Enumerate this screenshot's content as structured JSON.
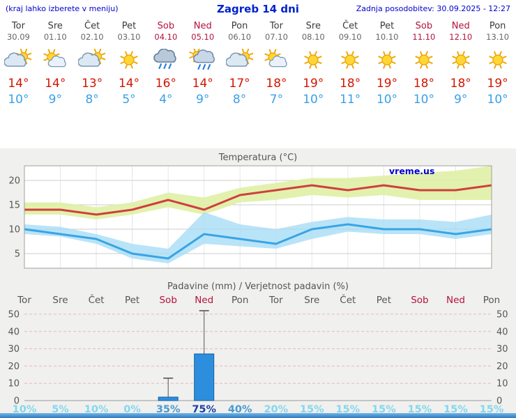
{
  "header": {
    "menu_note": "(kraj lahko izberete v meniju)",
    "title": "Zagreb 14 dni",
    "last_update": "Zadnja posodobitev: 30.09.2025 - 12:27"
  },
  "watermark": "vreme.us",
  "colors": {
    "header_blue": "#0000cc",
    "weekend_red": "#b5123c",
    "high_temp_red": "#d41400",
    "low_temp_blue": "#3a9fe8",
    "temp_max_line": "#cf3f3f",
    "temp_max_band": "#dff0a4",
    "temp_min_line": "#39a4e4",
    "temp_min_band": "#a5dcf6",
    "bar_fill": "#2d8edd",
    "bar_stroke": "#155f9f",
    "whisker": "#555555",
    "grid_temp": "#cccccc",
    "grid_precip": "#eab8b8",
    "prob_low": "#86d6ec",
    "prob_mid": "#4a9ad0",
    "prob_high": "#1b3fa8",
    "axis_text": "#555555"
  },
  "days": [
    {
      "name": "Tor",
      "date": "30.09",
      "weekend": false,
      "icon": "cloud-sun",
      "high": "14°",
      "low": "10°"
    },
    {
      "name": "Sre",
      "date": "01.10",
      "weekend": false,
      "icon": "sun-cloud",
      "high": "14°",
      "low": "9°"
    },
    {
      "name": "Čet",
      "date": "02.10",
      "weekend": false,
      "icon": "cloud-sun",
      "high": "13°",
      "low": "8°"
    },
    {
      "name": "Pet",
      "date": "03.10",
      "weekend": false,
      "icon": "sun",
      "high": "14°",
      "low": "5°"
    },
    {
      "name": "Sob",
      "date": "04.10",
      "weekend": true,
      "icon": "rain",
      "high": "16°",
      "low": "4°"
    },
    {
      "name": "Ned",
      "date": "05.10",
      "weekend": true,
      "icon": "rain-sun",
      "high": "14°",
      "low": "9°"
    },
    {
      "name": "Pon",
      "date": "06.10",
      "weekend": false,
      "icon": "cloud-sun",
      "high": "17°",
      "low": "8°"
    },
    {
      "name": "Tor",
      "date": "07.10",
      "weekend": false,
      "icon": "sun-cloud",
      "high": "18°",
      "low": "7°"
    },
    {
      "name": "Sre",
      "date": "08.10",
      "weekend": false,
      "icon": "sun",
      "high": "19°",
      "low": "10°"
    },
    {
      "name": "Čet",
      "date": "09.10",
      "weekend": false,
      "icon": "sun",
      "high": "18°",
      "low": "11°"
    },
    {
      "name": "Pet",
      "date": "10.10",
      "weekend": false,
      "icon": "sun",
      "high": "19°",
      "low": "10°"
    },
    {
      "name": "Sob",
      "date": "11.10",
      "weekend": true,
      "icon": "sun",
      "high": "18°",
      "low": "10°"
    },
    {
      "name": "Ned",
      "date": "12.10",
      "weekend": true,
      "icon": "sun",
      "high": "18°",
      "low": "9°"
    },
    {
      "name": "Pon",
      "date": "13.10",
      "weekend": false,
      "icon": "sun",
      "high": "19°",
      "low": "10°"
    }
  ],
  "chart_data": [
    {
      "type": "line",
      "title": "Temperatura (°C)",
      "x_labels": [
        "Tor",
        "Sre",
        "Čet",
        "Pet",
        "Sob",
        "Ned",
        "Pon",
        "Tor",
        "Sre",
        "Čet",
        "Pet",
        "Sob",
        "Ned",
        "Pon"
      ],
      "ylim": [
        2,
        23
      ],
      "yticks": [
        5,
        10,
        15,
        20
      ],
      "grid": true,
      "legend_position": "none",
      "series": [
        {
          "name": "max_band_upper",
          "values": [
            15.5,
            15.5,
            14.5,
            15.5,
            17.5,
            16.5,
            18.5,
            19.5,
            20.5,
            20.5,
            21,
            21.5,
            22,
            23
          ]
        },
        {
          "name": "max_temp",
          "values": [
            14,
            14,
            13,
            14,
            16,
            14,
            17,
            18,
            19,
            18,
            19,
            18,
            18,
            19
          ]
        },
        {
          "name": "max_band_lower",
          "values": [
            13,
            13,
            12,
            13,
            14.5,
            13,
            15.5,
            16,
            17,
            16.5,
            17,
            16,
            16,
            16
          ]
        },
        {
          "name": "min_band_upper",
          "values": [
            11,
            10.5,
            9,
            7,
            6,
            13.5,
            11,
            10,
            11.5,
            12.5,
            12,
            12,
            11.5,
            13
          ]
        },
        {
          "name": "min_temp",
          "values": [
            10,
            9,
            8,
            5,
            4,
            9,
            8,
            7,
            10,
            11,
            10,
            10,
            9,
            10
          ]
        },
        {
          "name": "min_band_lower",
          "values": [
            9,
            8.5,
            7,
            4,
            3,
            7,
            6.5,
            6,
            8,
            9.5,
            9,
            9,
            8,
            9
          ]
        }
      ]
    },
    {
      "type": "bar",
      "title": "Padavine (mm) / Verjetnost padavin (%)",
      "categories": [
        "Tor",
        "Sre",
        "Čet",
        "Pet",
        "Sob",
        "Ned",
        "Pon",
        "Tor",
        "Sre",
        "Čet",
        "Pet",
        "Sob",
        "Ned",
        "Pon"
      ],
      "weekend": [
        false,
        false,
        false,
        false,
        true,
        true,
        false,
        false,
        false,
        false,
        false,
        true,
        true,
        false
      ],
      "precip_mm": [
        0,
        0,
        0,
        0,
        2,
        27,
        0,
        0,
        0,
        0,
        0,
        0,
        0,
        0
      ],
      "precip_max_mm": [
        0,
        0,
        0,
        0,
        13,
        52,
        0,
        0,
        0,
        0,
        0,
        0,
        0,
        0
      ],
      "probability_pct": [
        10,
        5,
        10,
        0,
        35,
        75,
        40,
        20,
        15,
        15,
        15,
        15,
        15,
        15
      ],
      "ylim": [
        0,
        52
      ],
      "yticks": [
        0,
        10,
        20,
        30,
        40,
        50
      ],
      "grid": true,
      "legend_position": "none"
    }
  ]
}
